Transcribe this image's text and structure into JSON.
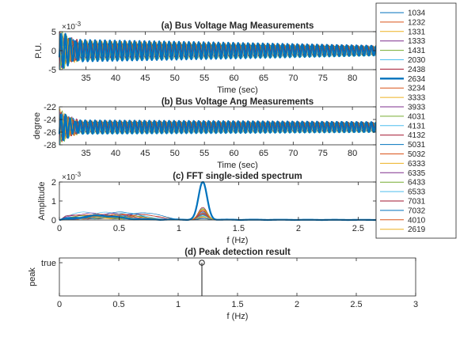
{
  "chart_data": [
    {
      "type": "line",
      "title": "(a) Bus Voltage Mag Measurements",
      "xlabel": "Time (sec)",
      "ylabel": "P.U.",
      "exponent_label": "×10",
      "exponent": "-3",
      "xlim": [
        30.5,
        84
      ],
      "ylim": [
        -5,
        5
      ],
      "xticks": [
        35,
        40,
        45,
        50,
        55,
        60,
        65,
        70,
        75,
        80
      ],
      "yticks": [
        -5,
        0,
        5
      ],
      "signal": {
        "frequency_hz": 1.2,
        "amplitude_peak": 3.0,
        "amplitude_end": 1.3,
        "center": 0
      }
    },
    {
      "type": "line",
      "title": "(b) Bus Voltage Ang Measurements",
      "xlabel": "Time (sec)",
      "ylabel": "degree",
      "xlim": [
        30.5,
        84
      ],
      "ylim": [
        -28,
        -22
      ],
      "xticks": [
        35,
        40,
        45,
        50,
        55,
        60,
        65,
        70,
        75,
        80
      ],
      "yticks": [
        -28,
        -26,
        -24,
        -22
      ],
      "signal": {
        "frequency_hz": 1.2,
        "amplitude_peak": 1.1,
        "amplitude_end": 0.8,
        "center": -25.2
      }
    },
    {
      "type": "line",
      "title": "(c) FFT single-sided spectrum",
      "xlabel": "f (Hz)",
      "ylabel": "Amplitude",
      "exponent_label": "×10",
      "exponent": "-3",
      "xlim": [
        0,
        2.65
      ],
      "ylim": [
        0,
        2
      ],
      "xticks": [
        0,
        0.5,
        1,
        1.5,
        2,
        2.5
      ],
      "yticks": [
        0,
        1,
        2
      ],
      "highlight_peak": {
        "x": 1.2,
        "y": 2.0
      }
    },
    {
      "type": "line",
      "title": "(d) Peak detection result",
      "xlabel": "f (Hz)",
      "ylabel": "peak",
      "xlim": [
        0,
        3
      ],
      "xticks": [
        0,
        0.5,
        1,
        1.5,
        2,
        2.5,
        3
      ],
      "ytick_labels": [
        "true"
      ],
      "peak": {
        "x": 1.2,
        "value": "true"
      }
    }
  ],
  "legend": {
    "placement": "right",
    "highlighted": "2634",
    "entries": [
      {
        "label": "1034",
        "color": "#0072bd"
      },
      {
        "label": "1232",
        "color": "#d95319"
      },
      {
        "label": "1331",
        "color": "#edb120"
      },
      {
        "label": "1333",
        "color": "#7e2f8e"
      },
      {
        "label": "1431",
        "color": "#77ac30"
      },
      {
        "label": "2030",
        "color": "#4dbeee"
      },
      {
        "label": "2438",
        "color": "#a2142f"
      },
      {
        "label": "2634",
        "color": "#0072bd"
      },
      {
        "label": "3234",
        "color": "#d95319"
      },
      {
        "label": "3333",
        "color": "#edb120"
      },
      {
        "label": "3933",
        "color": "#7e2f8e"
      },
      {
        "label": "4031",
        "color": "#77ac30"
      },
      {
        "label": "4131",
        "color": "#4dbeee"
      },
      {
        "label": "4132",
        "color": "#a2142f"
      },
      {
        "label": "5031",
        "color": "#0072bd"
      },
      {
        "label": "5032",
        "color": "#d95319"
      },
      {
        "label": "6333",
        "color": "#edb120"
      },
      {
        "label": "6335",
        "color": "#7e2f8e"
      },
      {
        "label": "6433",
        "color": "#77ac30"
      },
      {
        "label": "6533",
        "color": "#4dbeee"
      },
      {
        "label": "7031",
        "color": "#a2142f"
      },
      {
        "label": "7032",
        "color": "#0072bd"
      },
      {
        "label": "4010",
        "color": "#d95319"
      },
      {
        "label": "2619",
        "color": "#edb120"
      }
    ]
  }
}
